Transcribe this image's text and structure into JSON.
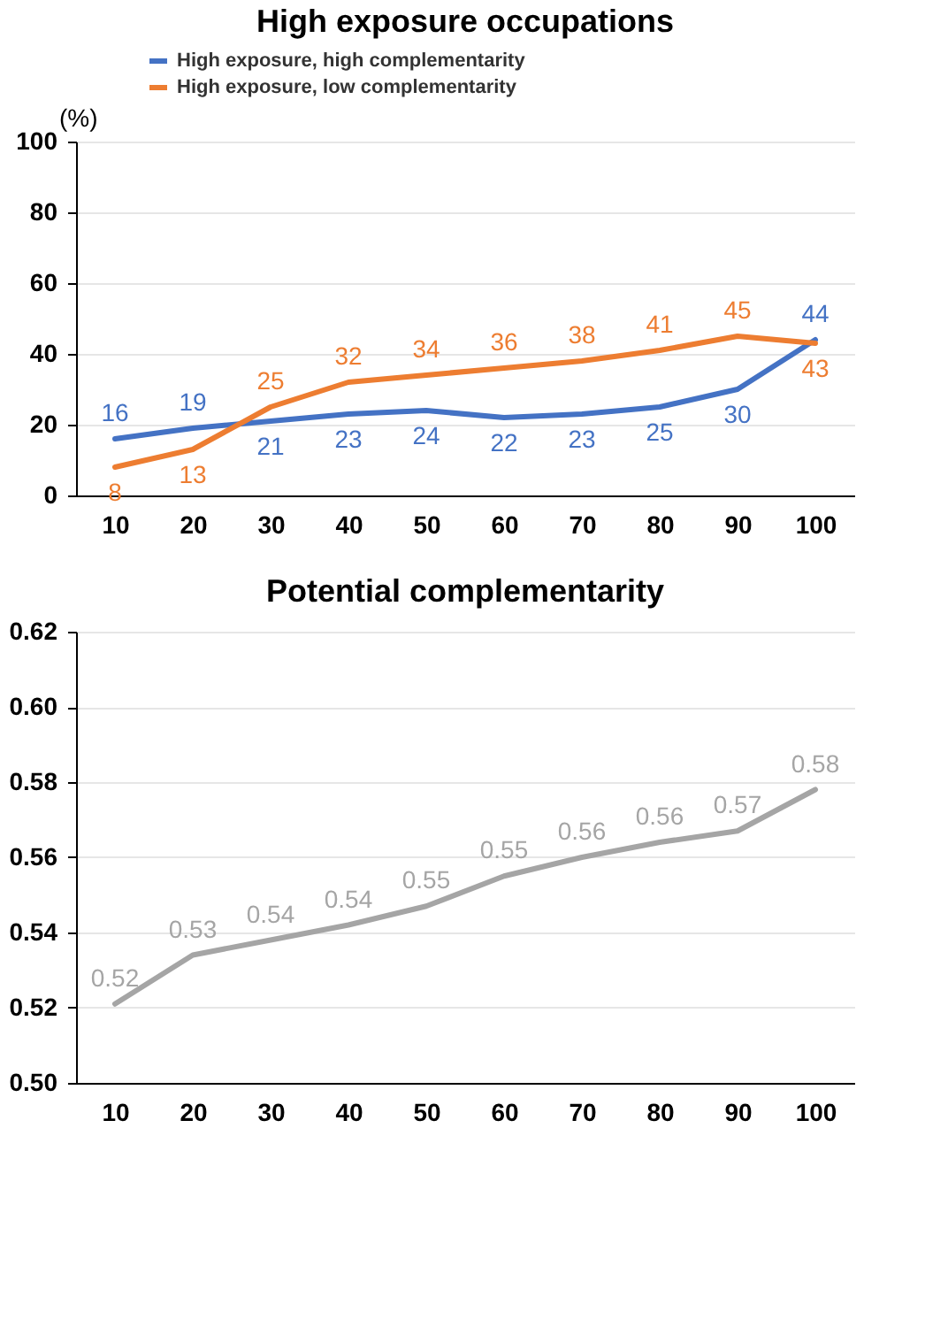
{
  "chart_data": [
    {
      "type": "line",
      "title": "High exposure occupations",
      "ylabel": "(%)",
      "categories": [
        "10",
        "20",
        "30",
        "40",
        "50",
        "60",
        "70",
        "80",
        "90",
        "100"
      ],
      "series": [
        {
          "name": "High exposure, high complementarity",
          "color": "#4472c4",
          "values": [
            16,
            19,
            21,
            23,
            24,
            22,
            23,
            25,
            30,
            44
          ]
        },
        {
          "name": "High exposure, low complementarity",
          "color": "#ed7d31",
          "values": [
            8,
            13,
            25,
            32,
            34,
            36,
            38,
            41,
            45,
            43
          ]
        }
      ],
      "ylim": [
        0,
        100
      ],
      "yticks": [
        0,
        20,
        40,
        60,
        80,
        100
      ],
      "grid": "y",
      "legend": "top",
      "data_labels": true
    },
    {
      "type": "line",
      "title": "Potential complementarity",
      "categories": [
        "10",
        "20",
        "30",
        "40",
        "50",
        "60",
        "70",
        "80",
        "90",
        "100"
      ],
      "series": [
        {
          "color": "#a5a5a5",
          "values": [
            0.521,
            0.534,
            0.538,
            0.542,
            0.547,
            0.555,
            0.56,
            0.564,
            0.567,
            0.578
          ],
          "value_labels": [
            "0.52",
            "0.53",
            "0.54",
            "0.54",
            "0.55",
            "0.55",
            "0.56",
            "0.56",
            "0.57",
            "0.58"
          ]
        }
      ],
      "ylim": [
        0.5,
        0.62
      ],
      "yticks": [
        {
          "value": 0.5,
          "label": "0.50"
        },
        0.52,
        0.54,
        0.56,
        0.58,
        {
          "value": 0.6,
          "label": "0.60"
        },
        0.62
      ],
      "grid": "y"
    }
  ]
}
